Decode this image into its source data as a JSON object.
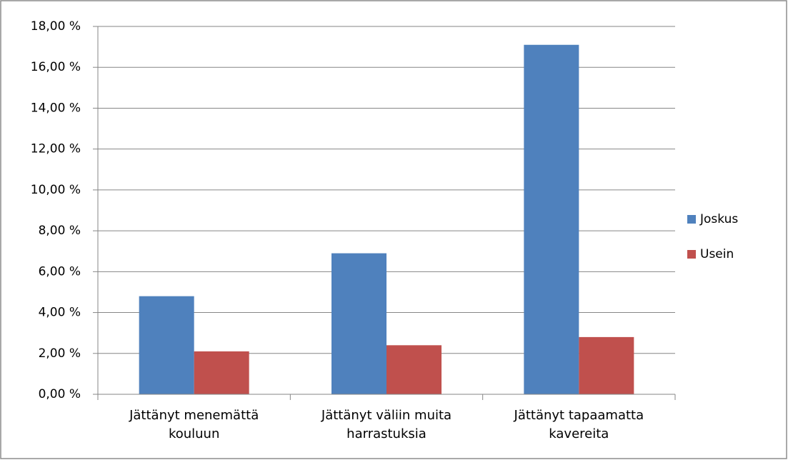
{
  "chart_data": {
    "type": "bar",
    "categories": [
      "Jättänyt menemättä kouluun",
      "Jättänyt väliin muita harrastuksia",
      "Jättänyt tapaamatta kavereita"
    ],
    "series": [
      {
        "name": "Joskus",
        "color": "#4f81bd",
        "values": [
          4.8,
          6.9,
          17.1
        ]
      },
      {
        "name": "Usein",
        "color": "#c0504d",
        "values": [
          2.1,
          2.4,
          2.8
        ]
      }
    ],
    "ylim": [
      0,
      18
    ],
    "yticks": [
      {
        "value": 0,
        "label": "0,00 %"
      },
      {
        "value": 2,
        "label": "2,00 %"
      },
      {
        "value": 4,
        "label": "4,00 %"
      },
      {
        "value": 6,
        "label": "6,00 %"
      },
      {
        "value": 8,
        "label": "8,00 %"
      },
      {
        "value": 10,
        "label": "10,00 %"
      },
      {
        "value": 12,
        "label": "12,00 %"
      },
      {
        "value": 14,
        "label": "14,00 %"
      },
      {
        "value": 16,
        "label": "16,00 %"
      },
      {
        "value": 18,
        "label": "18,00 %"
      }
    ],
    "grid": true,
    "legend": "right"
  }
}
